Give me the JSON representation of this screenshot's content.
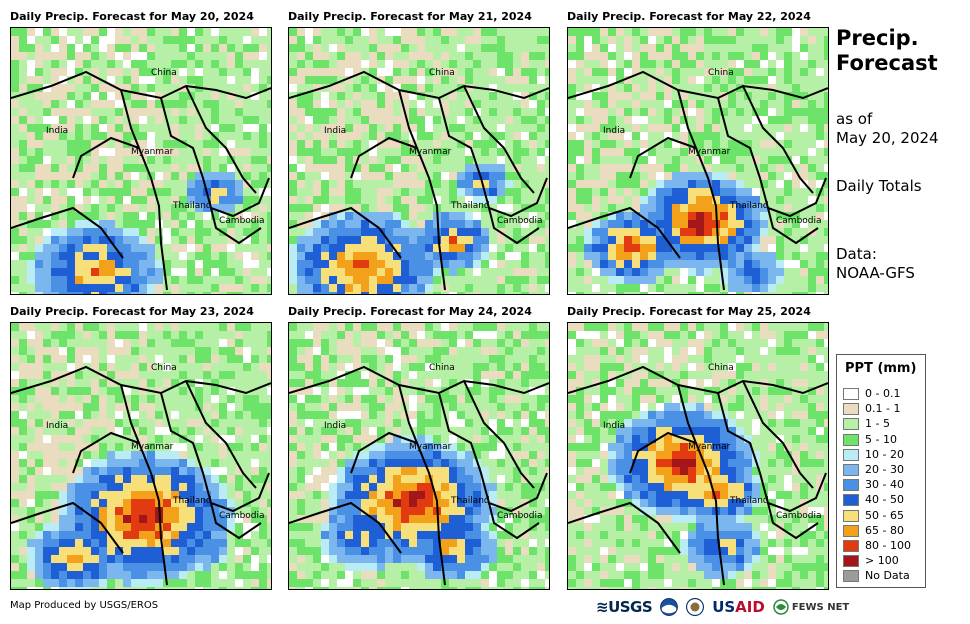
{
  "panels": [
    {
      "title": "Daily Precip. Forecast for May 20, 2024",
      "intensity": 0
    },
    {
      "title": "Daily Precip. Forecast for May 21, 2024",
      "intensity": 1
    },
    {
      "title": "Daily Precip. Forecast for May 22, 2024",
      "intensity": 2
    },
    {
      "title": "Daily Precip. Forecast for May 23, 2024",
      "intensity": 3
    },
    {
      "title": "Daily Precip. Forecast for May 24, 2024",
      "intensity": 4
    },
    {
      "title": "Daily Precip. Forecast for May 25, 2024",
      "intensity": 5
    }
  ],
  "map_labels": {
    "china": "China",
    "india": "India",
    "myanmar": "Myanmar",
    "thailand": "Thailand",
    "cambodia": "Cambodia"
  },
  "side": {
    "title_line1": "Precip.",
    "title_line2": "Forecast",
    "as_of_line1": "as of",
    "as_of_line2": "May 20, 2024",
    "totals": "Daily Totals",
    "data_line1": "Data:",
    "data_line2": "NOAA-GFS"
  },
  "legend": {
    "title": "PPT (mm)",
    "items": [
      {
        "label": "0 - 0.1",
        "color": "#ffffff"
      },
      {
        "label": "0.1 - 1",
        "color": "#eadcbf"
      },
      {
        "label": "1 - 5",
        "color": "#b6f0a6"
      },
      {
        "label": "5 - 10",
        "color": "#6ee36a"
      },
      {
        "label": "10 - 20",
        "color": "#b9ecf5"
      },
      {
        "label": "20 - 30",
        "color": "#7cb6ee"
      },
      {
        "label": "30 - 40",
        "color": "#4a90e4"
      },
      {
        "label": "40 - 50",
        "color": "#1f5fd6"
      },
      {
        "label": "50 - 65",
        "color": "#f7e07a"
      },
      {
        "label": "65 - 80",
        "color": "#f3a11b"
      },
      {
        "label": "80 - 100",
        "color": "#e23b12"
      },
      {
        "label": "> 100",
        "color": "#a3161a"
      },
      {
        "label": "No Data",
        "color": "#9b9b9b"
      }
    ]
  },
  "credit": "Map Produced by USGS/EROS",
  "logos": {
    "usgs": "USGS",
    "usaid_us": "US",
    "usaid_aid": "AID",
    "fews": "FEWS NET"
  }
}
